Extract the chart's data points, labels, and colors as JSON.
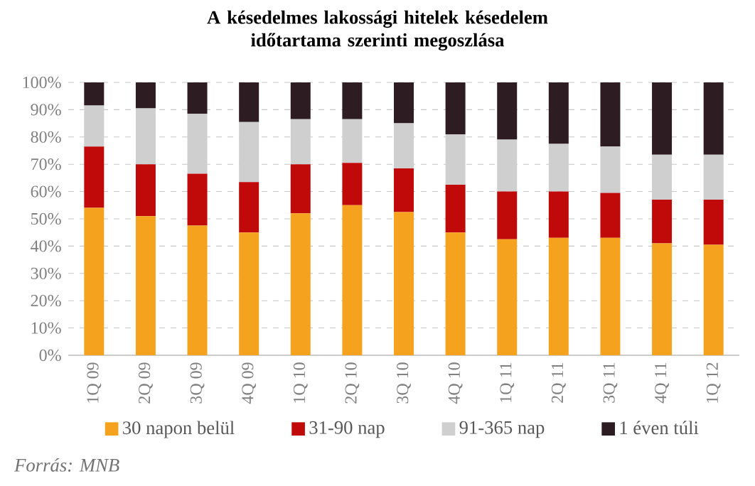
{
  "chart_data": {
    "type": "bar",
    "stacked": true,
    "title": "A késedelmes lakossági hitelek késedelem időtartama szerinti megoszlása",
    "categories": [
      "1Q 09",
      "2Q 09",
      "3Q 09",
      "4Q 09",
      "1Q 10",
      "2Q 10",
      "3Q 10",
      "4Q 10",
      "1Q 11",
      "2Q 11",
      "3Q 11",
      "4Q 11",
      "1Q 12"
    ],
    "series": [
      {
        "name": "30 napon belül",
        "color": "#f5a31f",
        "values": [
          54,
          51,
          47.5,
          45,
          52,
          55,
          52.5,
          45,
          42.5,
          43,
          43,
          41,
          40.5
        ]
      },
      {
        "name": "31-90 nap",
        "color": "#c00a0a",
        "values": [
          22.5,
          19,
          19,
          18.5,
          18,
          15.5,
          16,
          17.5,
          17.5,
          17,
          16.5,
          16,
          16.5
        ]
      },
      {
        "name": "91-365 nap",
        "color": "#cfcfcf",
        "values": [
          15,
          20.5,
          22,
          22,
          16.5,
          16,
          16.5,
          18.5,
          19,
          17.5,
          17,
          16.5,
          16.5
        ]
      },
      {
        "name": "1 éven túli",
        "color": "#2d1c22",
        "values": [
          8.5,
          9.5,
          11.5,
          14.5,
          13.5,
          13.5,
          15,
          19,
          21,
          22.5,
          23.5,
          26.5,
          26.5
        ]
      }
    ],
    "ylim": [
      0,
      100
    ],
    "yticks": [
      {
        "value": 0,
        "label": "0%"
      },
      {
        "value": 10,
        "label": "10%"
      },
      {
        "value": 20,
        "label": "20%"
      },
      {
        "value": 30,
        "label": "30%"
      },
      {
        "value": 40,
        "label": "40%"
      },
      {
        "value": 50,
        "label": "50%"
      },
      {
        "value": 60,
        "label": "60%"
      },
      {
        "value": 70,
        "label": "70%"
      },
      {
        "value": 80,
        "label": "80%"
      },
      {
        "value": 90,
        "label": "90%"
      },
      {
        "value": 100,
        "label": "100%"
      }
    ],
    "grid": "y",
    "legend": "bottom",
    "annotations": [
      "Forrás: MNB"
    ]
  }
}
